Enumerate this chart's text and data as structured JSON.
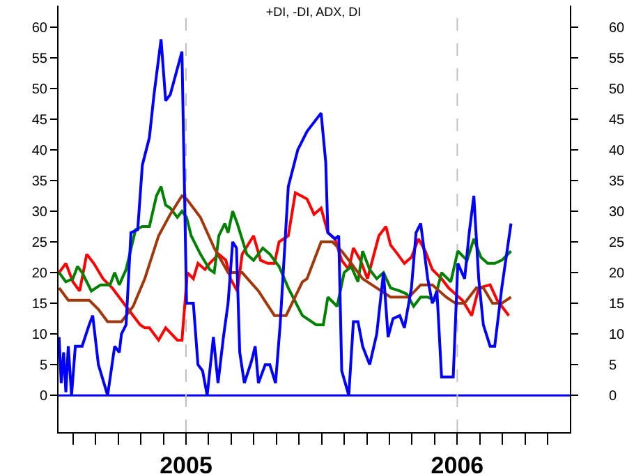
{
  "chart_data": {
    "type": "line",
    "title": "+DI, -DI, ADX, DI",
    "xlim": [
      2004.53,
      2006.415
    ],
    "ylim": [
      -6,
      63.5
    ],
    "xticks": [
      {
        "value": 2004.583,
        "label": null
      },
      {
        "value": 2004.667,
        "label": null
      },
      {
        "value": 2004.75,
        "label": null
      },
      {
        "value": 2004.833,
        "label": null
      },
      {
        "value": 2004.917,
        "label": null
      },
      2005,
      {
        "value": 2005.083,
        "label": null
      },
      {
        "value": 2005.167,
        "label": null
      },
      {
        "value": 2005.25,
        "label": null
      },
      {
        "value": 2005.333,
        "label": null
      },
      {
        "value": 2005.417,
        "label": null
      },
      {
        "value": 2005.5,
        "label": null
      },
      {
        "value": 2005.583,
        "label": null
      },
      {
        "value": 2005.667,
        "label": null
      },
      {
        "value": 2005.75,
        "label": null
      },
      {
        "value": 2005.833,
        "label": null
      },
      {
        "value": 2005.917,
        "label": null
      },
      2006,
      {
        "value": 2006.083,
        "label": null
      },
      {
        "value": 2006.167,
        "label": null
      },
      {
        "value": 2006.25,
        "label": null
      },
      {
        "value": 2006.333,
        "label": null
      }
    ],
    "yticks": [
      0,
      5,
      10,
      15,
      20,
      25,
      30,
      35,
      40,
      45,
      50,
      55,
      60
    ],
    "y2lim": [
      -6,
      63.5
    ],
    "y2ticks": [
      0,
      5,
      10,
      15,
      20,
      25,
      30,
      35,
      40,
      45,
      50,
      55,
      60
    ],
    "grid": false,
    "marker": "none",
    "line_style": "solid",
    "ref_lines": [
      {
        "axis": "y",
        "value": 0,
        "color": "#0000ff",
        "line_style": "solid"
      },
      {
        "axis": "x",
        "value": 2005,
        "color": "#c0c0c0",
        "line_style": "dashed"
      },
      {
        "axis": "x",
        "value": 2006,
        "color": "#c0c0c0",
        "line_style": "dashed"
      }
    ],
    "series": [
      {
        "color": "#ff0000",
        "x": [
          2004.532,
          2004.557,
          2004.583,
          2004.608,
          2004.634,
          2004.66,
          2004.694,
          2004.728,
          2004.779,
          2004.831,
          2004.848,
          2004.865,
          2004.899,
          2004.925,
          2004.968,
          2004.985,
          2005.005,
          2005.027,
          2005.044,
          2005.07,
          2005.087,
          2005.121,
          2005.147,
          2005.164,
          2005.189,
          2005.207,
          2005.249,
          2005.275,
          2005.301,
          2005.326,
          2005.343,
          2005.377,
          2005.403,
          2005.446,
          2005.472,
          2005.498,
          2005.523,
          2005.549,
          2005.574,
          2005.6,
          2005.617,
          2005.643,
          2005.669,
          2005.711,
          2005.737,
          2005.754,
          2005.78,
          2005.805,
          2005.831,
          2005.857,
          2005.882,
          2005.908,
          2005.942,
          2005.968,
          2005.993,
          2006.019,
          2006.053,
          2006.079,
          2006.121,
          2006.147,
          2006.19
        ],
        "values": [
          20,
          21.5,
          18.5,
          17,
          23,
          21.5,
          19,
          17.5,
          14.5,
          11.5,
          11,
          11,
          9,
          11,
          9,
          9,
          20,
          19,
          21.5,
          20.5,
          21.5,
          23,
          22,
          19,
          17,
          23,
          26,
          22,
          21.5,
          21.5,
          25,
          26,
          33,
          32,
          29.5,
          30.5,
          26.5,
          25.5,
          22,
          20.5,
          24,
          22,
          19,
          26,
          27.5,
          24.5,
          23,
          21.5,
          22.5,
          25.5,
          23.5,
          20.5,
          19,
          17.5,
          16.5,
          15.5,
          13,
          17.5,
          18,
          15.5,
          13
        ]
      },
      {
        "color": "#008000",
        "x": [
          2004.532,
          2004.557,
          2004.583,
          2004.6,
          2004.617,
          2004.651,
          2004.685,
          2004.72,
          2004.737,
          2004.754,
          2004.779,
          2004.814,
          2004.839,
          2004.865,
          2004.891,
          2004.908,
          2004.925,
          2004.942,
          2004.968,
          2004.985,
          2005.002,
          2005.019,
          2005.053,
          2005.087,
          2005.104,
          2005.121,
          2005.143,
          2005.155,
          2005.172,
          2005.189,
          2005.224,
          2005.249,
          2005.283,
          2005.309,
          2005.343,
          2005.377,
          2005.429,
          2005.48,
          2005.506,
          2005.523,
          2005.557,
          2005.583,
          2005.609,
          2005.634,
          2005.651,
          2005.677,
          2005.703,
          2005.728,
          2005.754,
          2005.788,
          2005.814,
          2005.839,
          2005.865,
          2005.891,
          2005.916,
          2005.942,
          2005.976,
          2006.002,
          2006.036,
          2006.061,
          2006.087,
          2006.112,
          2006.138,
          2006.164,
          2006.198
        ],
        "values": [
          20,
          18.5,
          19,
          21,
          20,
          17,
          18,
          18,
          20,
          18,
          20.5,
          27,
          27.5,
          27.5,
          32.5,
          34,
          31,
          30.5,
          29,
          30,
          29,
          26,
          23,
          20.5,
          20,
          26,
          28,
          26.5,
          30,
          28,
          23,
          22,
          24,
          23,
          21,
          17.5,
          13,
          11.5,
          11.5,
          16,
          14.5,
          20,
          21,
          18.5,
          23.5,
          20.5,
          19,
          20,
          17.5,
          17,
          16.5,
          14.5,
          16,
          16,
          15.5,
          20,
          18.5,
          23.5,
          22,
          25.5,
          22.5,
          21.5,
          21.5,
          22,
          23.5
        ]
      },
      {
        "color": "#a0380c",
        "x": [
          2004.532,
          2004.566,
          2004.643,
          2004.677,
          2004.711,
          2004.762,
          2004.805,
          2004.848,
          2004.899,
          2004.942,
          2004.985,
          2005.002,
          2005.053,
          2005.104,
          2005.155,
          2005.207,
          2005.267,
          2005.326,
          2005.369,
          2005.429,
          2005.446,
          2005.498,
          2005.54,
          2005.574,
          2005.609,
          2005.651,
          2005.703,
          2005.754,
          2005.822,
          2005.865,
          2005.908,
          2005.959,
          2005.993,
          2006.027,
          2006.07,
          2006.096,
          2006.13,
          2006.164,
          2006.198
        ],
        "values": [
          17.5,
          15.5,
          15.5,
          14,
          12,
          12,
          14.5,
          19,
          26,
          29.5,
          32.5,
          32,
          29,
          24,
          20,
          20,
          17,
          13,
          13,
          18.5,
          19,
          25,
          25,
          23.5,
          21.5,
          19,
          17.5,
          16,
          16,
          18,
          18,
          16,
          15,
          15,
          17.5,
          17.5,
          15,
          15,
          16
        ]
      },
      {
        "color": "#0000ff",
        "x": [
          2004.532,
          2004.54,
          2004.549,
          2004.557,
          2004.566,
          2004.578,
          2004.592,
          2004.617,
          2004.643,
          2004.656,
          2004.677,
          2004.711,
          2004.737,
          2004.754,
          2004.762,
          2004.779,
          2004.797,
          2004.822,
          2004.839,
          2004.865,
          2004.882,
          2004.908,
          2004.925,
          2004.942,
          2004.985,
          2005.002,
          2005.027,
          2005.044,
          2005.061,
          2005.078,
          2005.101,
          2005.118,
          2005.138,
          2005.155,
          2005.172,
          2005.186,
          2005.198,
          2005.215,
          2005.241,
          2005.255,
          2005.267,
          2005.292,
          2005.309,
          2005.33,
          2005.347,
          2005.377,
          2005.412,
          2005.446,
          2005.498,
          2005.515,
          2005.523,
          2005.549,
          2005.563,
          2005.574,
          2005.6,
          2005.617,
          2005.634,
          2005.651,
          2005.677,
          2005.703,
          2005.728,
          2005.745,
          2005.763,
          2005.788,
          2005.805,
          2005.831,
          2005.848,
          2005.865,
          2005.891,
          2005.908,
          2005.925,
          2005.942,
          2005.985,
          2006.002,
          2006.027,
          2006.044,
          2006.061,
          2006.079,
          2006.096,
          2006.121,
          2006.138,
          2006.164,
          2006.198
        ],
        "values": [
          9.5,
          2,
          7,
          0.5,
          8,
          0,
          8,
          8,
          11.5,
          13,
          5,
          0,
          8,
          7,
          10,
          11.5,
          26.5,
          27,
          37.5,
          42,
          49,
          58,
          48,
          49,
          56,
          15,
          15,
          5,
          4,
          0,
          9.5,
          2,
          9.5,
          15,
          25,
          24,
          7,
          2,
          5.5,
          8,
          2,
          5,
          5,
          2,
          11.5,
          34,
          40,
          43,
          46,
          38,
          26.5,
          25.5,
          26,
          4,
          0,
          12,
          12,
          8,
          5,
          10,
          20,
          9.5,
          12.5,
          13,
          11,
          17.5,
          26.5,
          28,
          19,
          15,
          17,
          3,
          3,
          21.5,
          19,
          26.5,
          32.5,
          19,
          11.5,
          8,
          8,
          17.5,
          28
        ]
      }
    ]
  }
}
